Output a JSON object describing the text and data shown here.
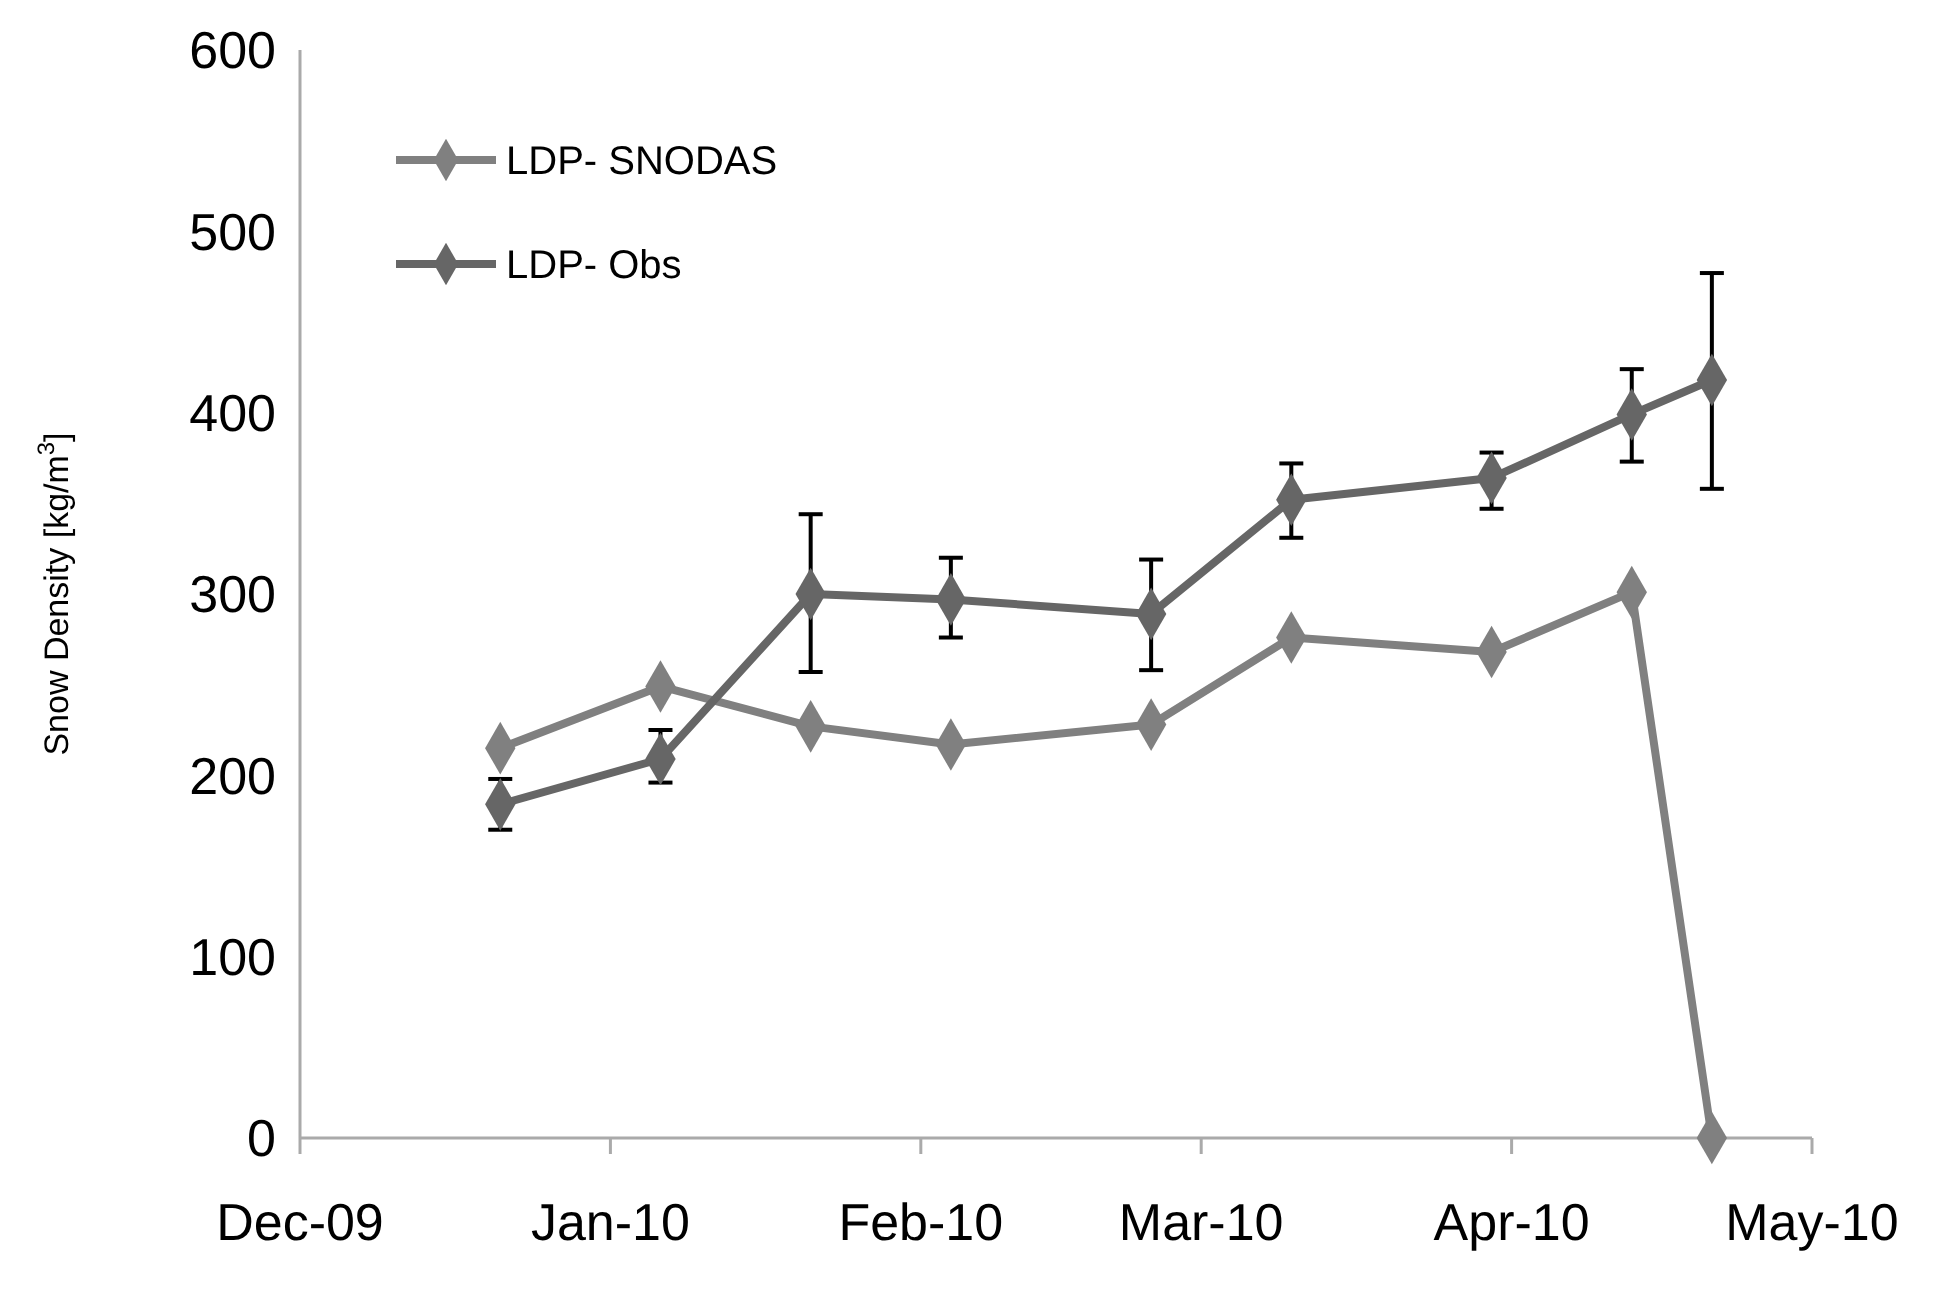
{
  "chart_data": {
    "type": "line",
    "ylabel": "Snow Density [kg/m$^{3}$]",
    "x": [
      "2009-12-21",
      "2010-01-06",
      "2010-01-21",
      "2010-02-04",
      "2010-02-24",
      "2010-03-10",
      "2010-03-30",
      "2010-04-13",
      "2010-04-21"
    ],
    "series": [
      {
        "name": "LDP- SNODAS",
        "color": "#808080",
        "values": [
          215,
          249,
          227,
          217,
          228,
          276,
          268,
          301,
          0
        ]
      },
      {
        "name": "LDP- Obs",
        "color": "#666666",
        "values": [
          184,
          209,
          300,
          297,
          289,
          352,
          364,
          399,
          418
        ],
        "errors": [
          [
            170,
            198
          ],
          [
            196,
            225
          ],
          [
            257,
            344
          ],
          [
            276,
            320
          ],
          [
            258,
            319
          ],
          [
            331,
            372
          ],
          [
            347,
            378
          ],
          [
            373,
            424
          ],
          [
            358,
            477
          ]
        ]
      }
    ],
    "xlim": [
      "2009-12-01",
      "2010-05-01"
    ],
    "xticks": [
      {
        "value": "2009-12-01",
        "label": "Dec-09"
      },
      {
        "value": "2010-01-01",
        "label": "Jan-10"
      },
      {
        "value": "2010-02-01",
        "label": "Feb-10"
      },
      {
        "value": "2010-03-01",
        "label": "Mar-10"
      },
      {
        "value": "2010-04-01",
        "label": "Apr-10"
      },
      {
        "value": "2010-05-01",
        "label": "May-10"
      }
    ],
    "ylim": [
      0,
      600
    ],
    "yticks": [
      0,
      100,
      200,
      300,
      400,
      500,
      600
    ],
    "marker": "diamond",
    "legend": "top left",
    "grid": false
  }
}
